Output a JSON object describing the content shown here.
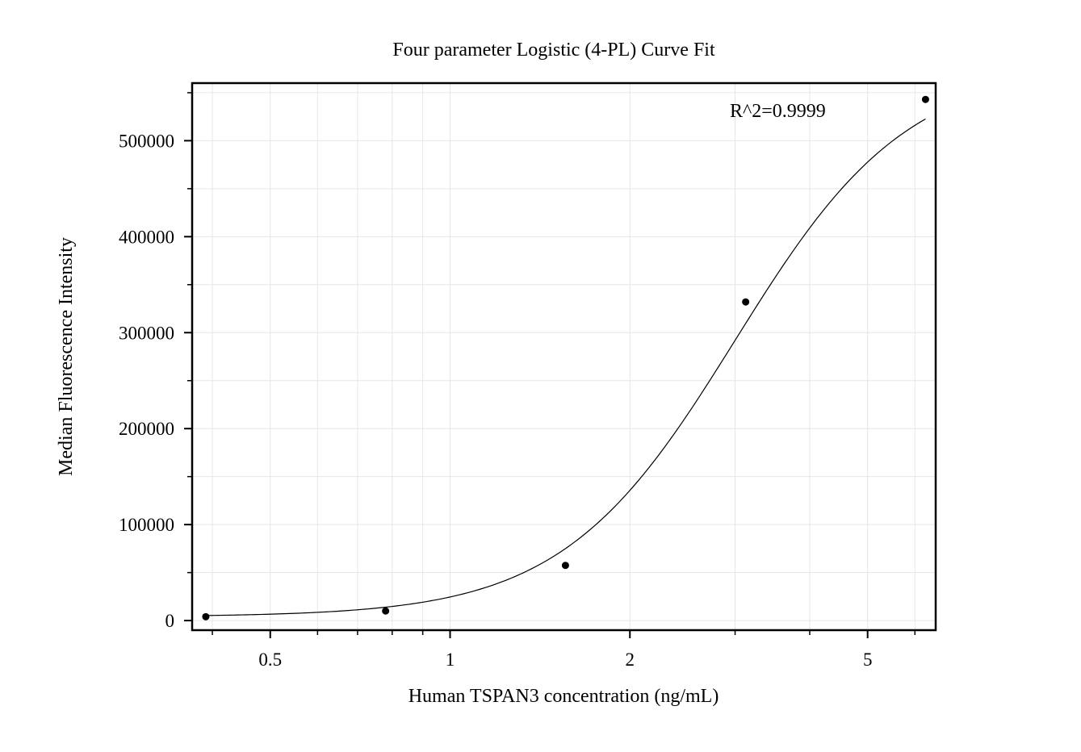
{
  "chart_data": {
    "type": "scatter",
    "title": "Four parameter Logistic (4-PL) Curve Fit",
    "xlabel": "Human TSPAN3 concentration (ng/mL)",
    "ylabel": "Median Fluorescence Intensity",
    "x_scale": "log",
    "xlim": [
      0.37,
      6.5
    ],
    "ylim": [
      -10000,
      560000
    ],
    "x_ticks": [
      {
        "value": 0.5,
        "label": "0.5"
      },
      {
        "value": 1,
        "label": "1"
      },
      {
        "value": 2,
        "label": "2"
      },
      {
        "value": 5,
        "label": "5"
      }
    ],
    "y_ticks": [
      {
        "value": 0,
        "label": "0"
      },
      {
        "value": 100000,
        "label": "100000"
      },
      {
        "value": 200000,
        "label": "200000"
      },
      {
        "value": 300000,
        "label": "300000"
      },
      {
        "value": 400000,
        "label": "400000"
      },
      {
        "value": 500000,
        "label": "500000"
      }
    ],
    "grid": true,
    "series": [
      {
        "kind": "points",
        "x": [
          0.39,
          0.78,
          1.56,
          3.125,
          6.25
        ],
        "y": [
          4000,
          10000,
          57500,
          332000,
          543000
        ]
      },
      {
        "kind": "4pl-fit",
        "params": {
          "A": 4000,
          "B": 3.0,
          "C": 3.0,
          "D": 580000
        }
      }
    ],
    "annotations": [
      {
        "text": "R^2=0.9999"
      }
    ],
    "colors": {
      "points": "#000000",
      "curve": "#000000",
      "grid": "#e6e6e6"
    }
  }
}
